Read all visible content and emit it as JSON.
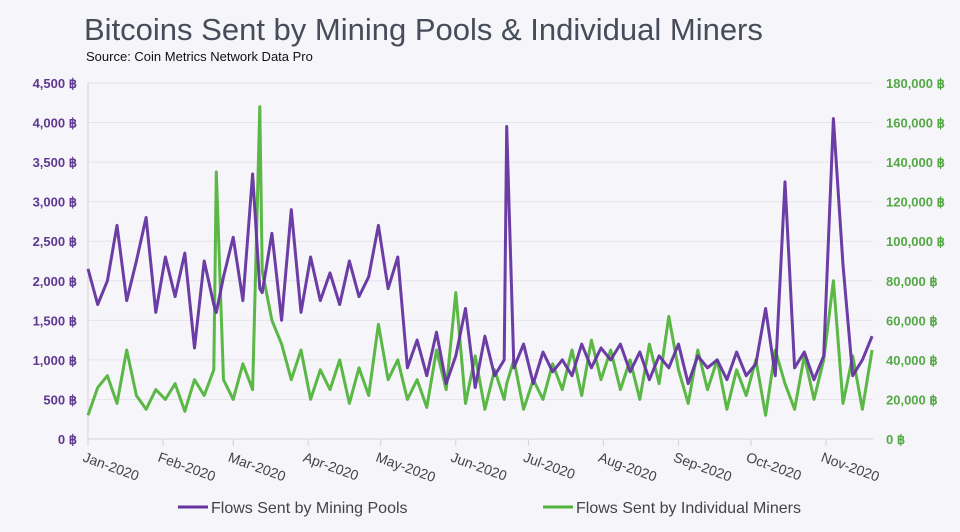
{
  "chart_data": {
    "type": "line",
    "title": "Bitcoins Sent by Mining Pools & Individual Miners",
    "subtitle": "Source: Coin Metrics Network Data Pro",
    "x_tick_labels": [
      "Jan-2020",
      "Feb-2020",
      "Mar-2020",
      "Apr-2020",
      "May-2020",
      "Jun-2020",
      "Jul-2020",
      "Aug-2020",
      "Sep-2020",
      "Oct-2020",
      "Nov-2020"
    ],
    "x_tick_dates": [
      "2020-01-01",
      "2020-02-01",
      "2020-03-01",
      "2020-04-01",
      "2020-05-01",
      "2020-06-01",
      "2020-07-01",
      "2020-08-01",
      "2020-09-01",
      "2020-10-01",
      "2020-11-01"
    ],
    "y_left": {
      "min": 0,
      "max": 4500,
      "ticks": [
        0,
        500,
        1000,
        1500,
        2000,
        2500,
        3000,
        3500,
        4000,
        4500
      ],
      "tick_labels": [
        "0 ฿",
        "500 ฿",
        "1,000 ฿",
        "1,500 ฿",
        "2,000 ฿",
        "2,500 ฿",
        "3,000 ฿",
        "3,500 ฿",
        "4,000 ฿",
        "4,500 ฿"
      ],
      "color": "#5e3890"
    },
    "y_right": {
      "min": 0,
      "max": 180000,
      "ticks": [
        0,
        20000,
        40000,
        60000,
        80000,
        100000,
        120000,
        140000,
        160000,
        180000
      ],
      "tick_labels": [
        "0 ฿",
        "20,000 ฿",
        "40,000 ฿",
        "60,000 ฿",
        "80,000 ฿",
        "100,000 ฿",
        "120,000 ฿",
        "140,000 ฿",
        "160,000 ฿",
        "180,000 ฿"
      ],
      "color": "#54a845"
    },
    "grid": true,
    "legend_position": "bottom",
    "x": [
      "2020-01-01",
      "2020-01-05",
      "2020-01-09",
      "2020-01-13",
      "2020-01-17",
      "2020-01-21",
      "2020-01-25",
      "2020-01-29",
      "2020-02-02",
      "2020-02-06",
      "2020-02-10",
      "2020-02-14",
      "2020-02-18",
      "2020-02-22",
      "2020-02-23",
      "2020-02-26",
      "2020-03-01",
      "2020-03-05",
      "2020-03-09",
      "2020-03-12",
      "2020-03-13",
      "2020-03-17",
      "2020-03-21",
      "2020-03-25",
      "2020-03-29",
      "2020-04-02",
      "2020-04-06",
      "2020-04-10",
      "2020-04-14",
      "2020-04-18",
      "2020-04-22",
      "2020-04-26",
      "2020-04-30",
      "2020-05-04",
      "2020-05-08",
      "2020-05-12",
      "2020-05-16",
      "2020-05-20",
      "2020-05-24",
      "2020-05-28",
      "2020-06-01",
      "2020-06-05",
      "2020-06-09",
      "2020-06-13",
      "2020-06-17",
      "2020-06-21",
      "2020-06-22",
      "2020-06-25",
      "2020-06-29",
      "2020-07-03",
      "2020-07-07",
      "2020-07-11",
      "2020-07-15",
      "2020-07-19",
      "2020-07-23",
      "2020-07-27",
      "2020-07-31",
      "2020-08-04",
      "2020-08-08",
      "2020-08-12",
      "2020-08-16",
      "2020-08-20",
      "2020-08-24",
      "2020-08-28",
      "2020-09-01",
      "2020-09-05",
      "2020-09-09",
      "2020-09-13",
      "2020-09-17",
      "2020-09-21",
      "2020-09-25",
      "2020-09-29",
      "2020-10-03",
      "2020-10-07",
      "2020-10-11",
      "2020-10-15",
      "2020-10-19",
      "2020-10-23",
      "2020-10-27",
      "2020-10-31",
      "2020-11-04",
      "2020-11-08",
      "2020-11-12",
      "2020-11-16",
      "2020-11-20"
    ],
    "series": [
      {
        "name": "Flows Sent by Mining Pools",
        "axis": "left",
        "color": "#6433a0",
        "values": [
          2150,
          1700,
          2000,
          2700,
          1750,
          2250,
          2800,
          1600,
          2300,
          1800,
          2350,
          1150,
          2250,
          1700,
          1600,
          2050,
          2550,
          1750,
          3350,
          1900,
          1850,
          2600,
          1500,
          2900,
          1600,
          2300,
          1750,
          2100,
          1700,
          2250,
          1800,
          2050,
          2700,
          1900,
          2300,
          900,
          1250,
          800,
          1350,
          700,
          1050,
          1650,
          650,
          1300,
          800,
          1000,
          3950,
          900,
          1200,
          700,
          1100,
          850,
          1000,
          800,
          1200,
          900,
          1150,
          1000,
          1200,
          850,
          1100,
          750,
          1050,
          900,
          1200,
          700,
          1050,
          900,
          1000,
          750,
          1100,
          800,
          950,
          1650,
          800,
          3250,
          900,
          1100,
          750,
          1050,
          4050,
          2200,
          800,
          1000,
          1300
        ]
      },
      {
        "name": "Flows Sent by Individual Miners",
        "axis": "right",
        "color": "#52b33c",
        "values": [
          12000,
          26000,
          32000,
          18000,
          45000,
          22000,
          15000,
          25000,
          20000,
          28000,
          14000,
          30000,
          22000,
          35000,
          135000,
          30000,
          20000,
          38000,
          25000,
          168000,
          85000,
          60000,
          48000,
          30000,
          45000,
          20000,
          35000,
          25000,
          40000,
          18000,
          36000,
          22000,
          58000,
          30000,
          40000,
          20000,
          30000,
          16000,
          45000,
          25000,
          74000,
          18000,
          42000,
          15000,
          35000,
          20000,
          28000,
          40000,
          15000,
          30000,
          20000,
          38000,
          25000,
          45000,
          22000,
          50000,
          30000,
          45000,
          25000,
          40000,
          20000,
          48000,
          28000,
          62000,
          35000,
          18000,
          45000,
          25000,
          40000,
          15000,
          35000,
          22000,
          40000,
          12000,
          45000,
          28000,
          15000,
          42000,
          20000,
          40000,
          80000,
          18000,
          42000,
          15000,
          45000
        ]
      }
    ]
  }
}
